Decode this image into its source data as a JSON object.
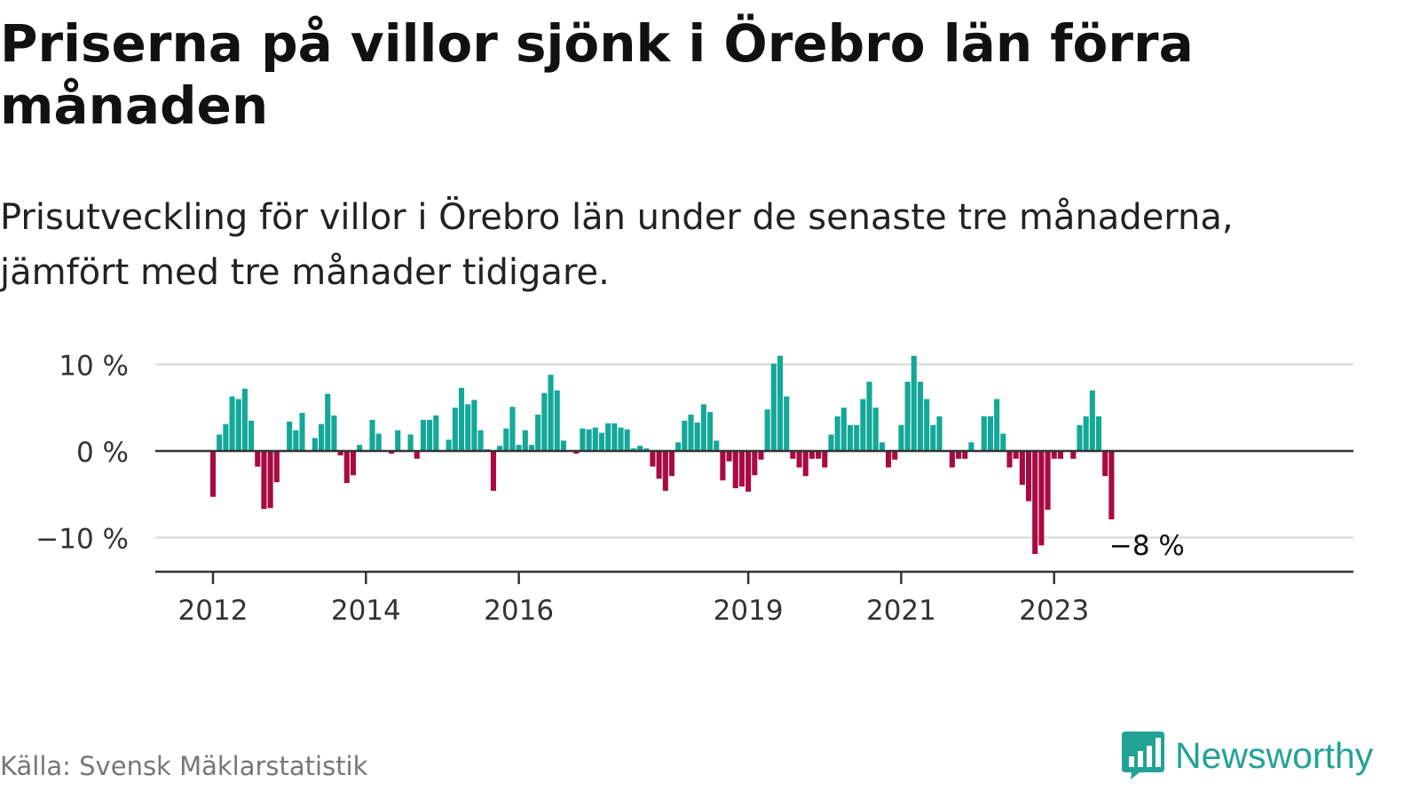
{
  "header": {
    "title": "Priserna på villor sjönk i Örebro län förra månaden",
    "subtitle": "Prisutveckling för villor i Örebro län under de senaste tre månaderna, jämfört med tre månader tidigare."
  },
  "footer": {
    "source": "Källa: Svensk Mäklarstatistik",
    "brand": "Newsworthy"
  },
  "colors": {
    "positive": "#13a898",
    "negative": "#a80a42",
    "grid": "#dddddd",
    "axis": "#333333",
    "brand": "#23a296"
  },
  "icons": {
    "brand_logo": "bar-chart-speech-bubble-icon"
  },
  "chart_data": {
    "type": "bar",
    "title": "",
    "xlabel": "",
    "ylabel": "",
    "ylim": [
      -13.7,
      10
    ],
    "grid": true,
    "y_ticks": [
      {
        "value": 10,
        "label": "10 %"
      },
      {
        "value": 0,
        "label": "0 %"
      },
      {
        "value": -10,
        "label": "−10 %"
      }
    ],
    "x_ticks": [
      {
        "index": 0,
        "label": "2012"
      },
      {
        "index": 24,
        "label": "2014"
      },
      {
        "index": 48,
        "label": "2016"
      },
      {
        "index": 84,
        "label": "2019"
      },
      {
        "index": 108,
        "label": "2021"
      },
      {
        "index": 132,
        "label": "2023"
      }
    ],
    "x_start": "2012-01",
    "x_end": "2023-10",
    "values": [
      -5.3,
      1.9,
      3.1,
      6.3,
      6.0,
      7.2,
      3.5,
      -1.8,
      -6.7,
      -6.6,
      -3.6,
      0,
      3.4,
      2.4,
      4.4,
      0,
      1.5,
      3.1,
      6.6,
      4.1,
      -0.5,
      -3.7,
      -2.8,
      0.7,
      0,
      3.6,
      2.0,
      0,
      -0.3,
      2.4,
      0,
      1.9,
      -0.9,
      3.6,
      3.6,
      4.1,
      0,
      1.3,
      5.0,
      7.3,
      5.4,
      5.9,
      2.4,
      0.2,
      -4.6,
      0.6,
      2.6,
      5.1,
      0.7,
      2.4,
      0.7,
      4.2,
      6.7,
      8.8,
      7.0,
      1.2,
      0,
      -0.3,
      2.6,
      2.5,
      2.7,
      2.1,
      3.2,
      3.2,
      2.7,
      2.5,
      0.3,
      0.6,
      0.3,
      -1.8,
      -3.2,
      -4.6,
      -2.9,
      1.0,
      3.5,
      4.2,
      3.3,
      5.4,
      4.5,
      1.2,
      -3.4,
      -1.2,
      -4.3,
      -4.1,
      -4.7,
      -2.8,
      -1.0,
      4.8,
      10.1,
      11.0,
      6.3,
      -0.9,
      -1.9,
      -2.9,
      -0.9,
      -0.9,
      -1.9,
      1.9,
      4.0,
      5.0,
      3.0,
      3.0,
      6.0,
      8.0,
      5.0,
      1.0,
      -1.9,
      -1.0,
      3.0,
      8.0,
      11.0,
      8.0,
      6.0,
      3.0,
      4.0,
      0,
      -1.9,
      -0.9,
      -0.9,
      1.0,
      0,
      4.0,
      4.0,
      6.0,
      2.0,
      -1.9,
      -0.9,
      -3.9,
      -5.8,
      -11.9,
      -10.9,
      -6.8,
      -0.9,
      -0.9,
      0,
      -0.9,
      3.0,
      4.0,
      7.0,
      4.0,
      -2.9,
      -7.9
    ],
    "annotation": {
      "label": "−8 %",
      "index": 141,
      "value": -7.9
    }
  }
}
